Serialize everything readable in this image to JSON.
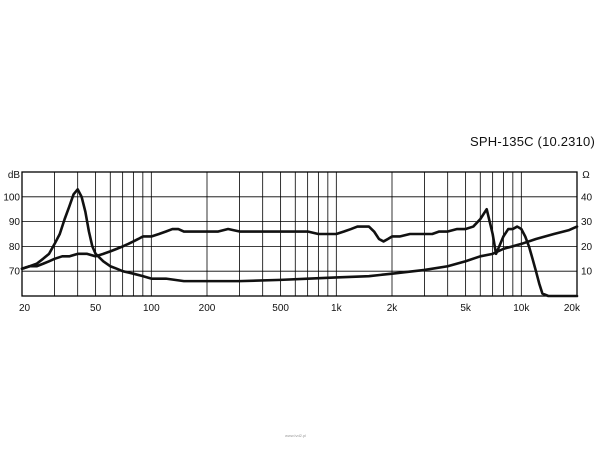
{
  "title": "SPH-135C  (10.2310)",
  "watermark": "www.lvd2.pl",
  "chart_data": {
    "type": "line",
    "title": "SPH-135C  (10.2310)",
    "x_scale": "log",
    "xlim": [
      20,
      20000
    ],
    "x_tick_labels": [
      {
        "value": 20,
        "label": "20"
      },
      {
        "value": 50,
        "label": "50"
      },
      {
        "value": 100,
        "label": "100"
      },
      {
        "value": 200,
        "label": "200"
      },
      {
        "value": 500,
        "label": "500"
      },
      {
        "value": 1000,
        "label": "1k"
      },
      {
        "value": 2000,
        "label": "2k"
      },
      {
        "value": 5000,
        "label": "5k"
      },
      {
        "value": 10000,
        "label": "10k"
      },
      {
        "value": 20000,
        "label": "20k"
      }
    ],
    "y_left": {
      "unit": "dB",
      "ylim": [
        60,
        110
      ],
      "ticks": [
        70,
        80,
        90,
        100
      ]
    },
    "y_right": {
      "unit": "Ω",
      "ylim": [
        0,
        50
      ],
      "ticks": [
        10,
        20,
        30,
        40
      ]
    },
    "grid": true,
    "series": [
      {
        "axis": "left",
        "x": [
          20,
          22,
          24,
          26,
          28,
          30,
          33,
          36,
          40,
          45,
          50,
          55,
          60,
          65,
          70,
          75,
          80,
          85,
          90,
          100,
          110,
          120,
          130,
          140,
          150,
          160,
          180,
          200,
          230,
          260,
          300,
          350,
          400,
          500,
          600,
          700,
          800,
          900,
          1000,
          1100,
          1200,
          1300,
          1400,
          1500,
          1600,
          1700,
          1800,
          1900,
          2000,
          2200,
          2500,
          2800,
          3000,
          3300,
          3600,
          4000,
          4500,
          5000,
          5500,
          6000,
          6500,
          7000,
          7300,
          7500,
          8000,
          8500,
          9000,
          9500,
          10000,
          10500,
          11000,
          11500,
          12000,
          12500,
          13000,
          14000,
          15000,
          16000,
          18000,
          20000
        ],
        "y": [
          71,
          72,
          72,
          73,
          74,
          75,
          76,
          76,
          77,
          77,
          76,
          77,
          78,
          79,
          80,
          81,
          82,
          83,
          84,
          84,
          85,
          86,
          87,
          87,
          86,
          86,
          86,
          86,
          86,
          87,
          86,
          86,
          86,
          86,
          86,
          86,
          85,
          85,
          85,
          86,
          87,
          88,
          88,
          88,
          86,
          83,
          82,
          83,
          84,
          84,
          85,
          85,
          85,
          85,
          86,
          86,
          87,
          87,
          88,
          91,
          95,
          85,
          77,
          79,
          84,
          87,
          87,
          88,
          87,
          84,
          80,
          75,
          70,
          65,
          61,
          60,
          60,
          60,
          60,
          60
        ]
      },
      {
        "axis": "right",
        "x": [
          20,
          22,
          24,
          26,
          28,
          30,
          32,
          34,
          36,
          38,
          40,
          42,
          44,
          46,
          48,
          50,
          55,
          60,
          65,
          70,
          80,
          90,
          100,
          120,
          150,
          200,
          300,
          500,
          700,
          1000,
          1500,
          2000,
          3000,
          4000,
          5000,
          6000,
          7000,
          8000,
          10000,
          12000,
          15000,
          18000,
          20000
        ],
        "y": [
          11,
          12,
          13,
          15,
          17,
          21,
          25,
          31,
          36,
          41,
          43,
          40,
          34,
          26,
          20,
          17,
          14,
          12,
          11,
          10,
          9,
          8,
          7,
          7,
          6,
          6,
          6,
          6.5,
          7,
          7.5,
          8,
          9,
          10.5,
          12,
          14,
          16,
          17,
          19,
          21,
          23,
          25,
          26.5,
          28
        ]
      }
    ]
  }
}
